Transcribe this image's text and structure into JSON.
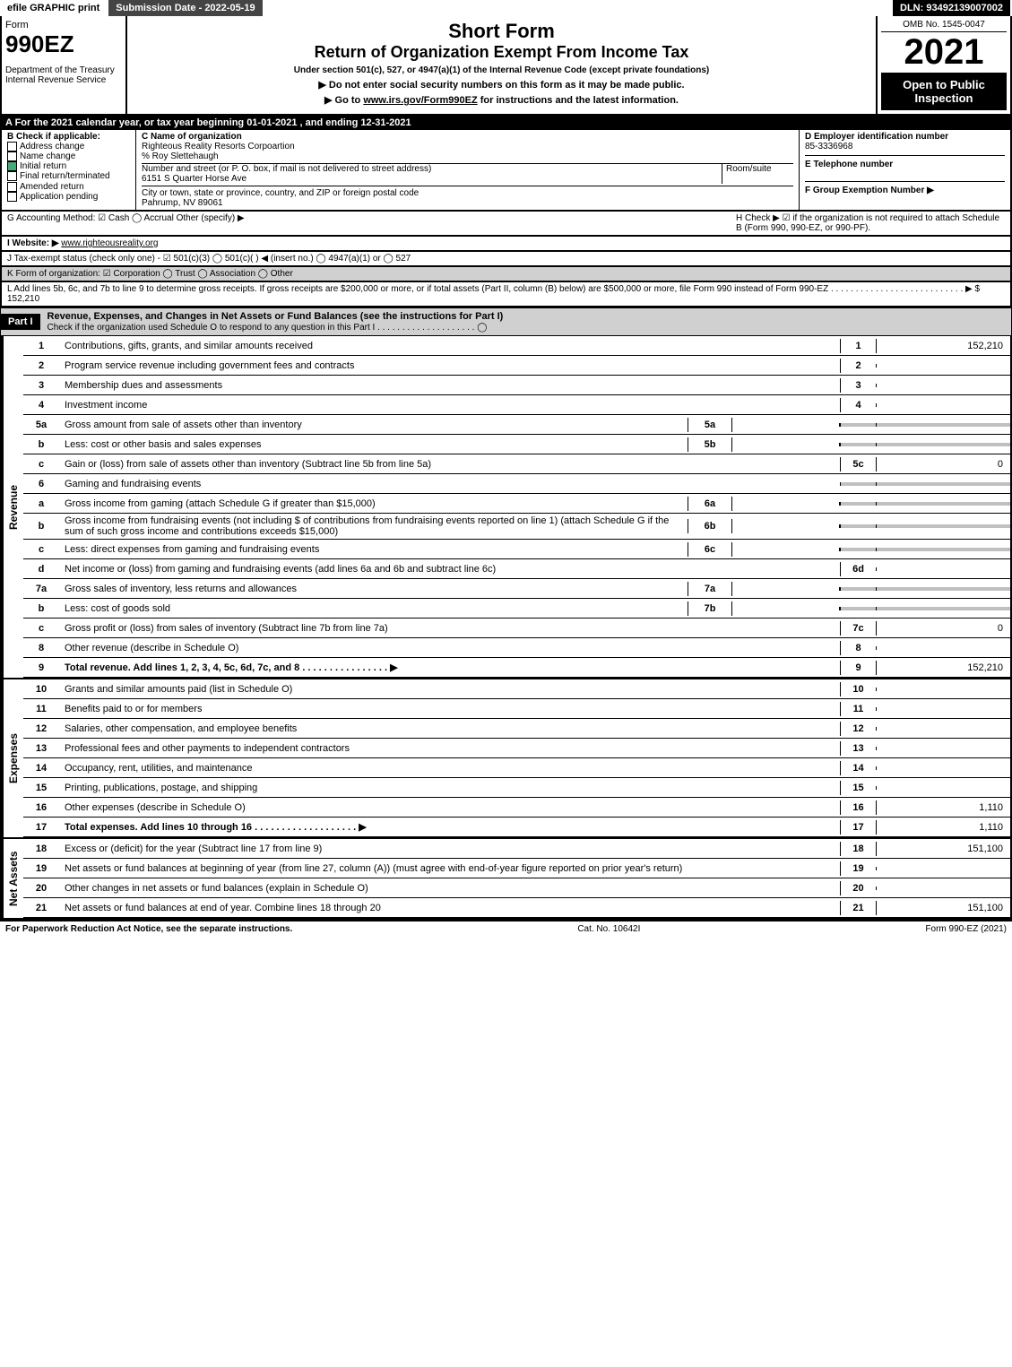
{
  "topbar": {
    "efile": "efile GRAPHIC print",
    "submission": "Submission Date - 2022-05-19",
    "dln": "DLN: 93492139007002"
  },
  "header": {
    "form_word": "Form",
    "form_num": "990EZ",
    "dept": "Department of the Treasury\nInternal Revenue Service",
    "short_form": "Short Form",
    "title": "Return of Organization Exempt From Income Tax",
    "subtitle": "Under section 501(c), 527, or 4947(a)(1) of the Internal Revenue Code (except private foundations)",
    "instr1": "▶ Do not enter social security numbers on this form as it may be made public.",
    "instr2_pre": "▶ Go to ",
    "instr2_link": "www.irs.gov/Form990EZ",
    "instr2_post": " for instructions and the latest information.",
    "omb": "OMB No. 1545-0047",
    "year": "2021",
    "open": "Open to Public Inspection"
  },
  "section_a": "A  For the 2021 calendar year, or tax year beginning 01-01-2021 , and ending 12-31-2021",
  "box_b": {
    "title": "B  Check if applicable:",
    "opts": [
      "Address change",
      "Name change",
      "Initial return",
      "Final return/terminated",
      "Amended return",
      "Application pending"
    ],
    "checked_idx": 2
  },
  "box_c": {
    "label_name": "C Name of organization",
    "org_name": "Righteous Reality Resorts Corpoartion",
    "care_of": "% Roy Slettehaugh",
    "label_addr": "Number and street (or P. O. box, if mail is not delivered to street address)",
    "room": "Room/suite",
    "addr": "6151 S Quarter Horse Ave",
    "label_city": "City or town, state or province, country, and ZIP or foreign postal code",
    "city": "Pahrump, NV  89061"
  },
  "box_d": {
    "label": "D Employer identification number",
    "val": "85-3336968"
  },
  "box_e": {
    "label": "E Telephone number",
    "val": ""
  },
  "box_f": {
    "label": "F Group Exemption Number  ▶",
    "val": ""
  },
  "line_g": "G Accounting Method:   ☑ Cash  ◯ Accrual   Other (specify) ▶",
  "line_h": "H  Check ▶ ☑ if the organization is not required to attach Schedule B (Form 990, 990-EZ, or 990-PF).",
  "line_i_label": "I Website: ▶",
  "line_i_val": "www.righteousreality.org",
  "line_j": "J Tax-exempt status (check only one) - ☑ 501(c)(3) ◯ 501(c)(  ) ◀ (insert no.) ◯ 4947(a)(1) or ◯ 527",
  "line_k": "K Form of organization:  ☑ Corporation  ◯ Trust  ◯ Association  ◯ Other",
  "line_l": "L Add lines 5b, 6c, and 7b to line 9 to determine gross receipts. If gross receipts are $200,000 or more, or if total assets (Part II, column (B) below) are $500,000 or more, file Form 990 instead of Form 990-EZ  .  .  .  .  .  .  .  .  .  .  .  .  .  .  .  .  .  .  .  .  .  .  .  .  .  .  .  ▶ $ 152,210",
  "part1": {
    "label": "Part I",
    "title": "Revenue, Expenses, and Changes in Net Assets or Fund Balances (see the instructions for Part I)",
    "check": "Check if the organization used Schedule O to respond to any question in this Part I  .  .  .  .  .  .  .  .  .  .  .  .  .  .  .  .  .  .  .  .  ◯"
  },
  "revenue_label": "Revenue",
  "expenses_label": "Expenses",
  "netassets_label": "Net Assets",
  "lines": {
    "l1": {
      "n": "1",
      "d": "Contributions, gifts, grants, and similar amounts received",
      "r": "1",
      "v": "152,210"
    },
    "l2": {
      "n": "2",
      "d": "Program service revenue including government fees and contracts",
      "r": "2",
      "v": ""
    },
    "l3": {
      "n": "3",
      "d": "Membership dues and assessments",
      "r": "3",
      "v": ""
    },
    "l4": {
      "n": "4",
      "d": "Investment income",
      "r": "4",
      "v": ""
    },
    "l5a": {
      "n": "5a",
      "d": "Gross amount from sale of assets other than inventory",
      "s": "5a",
      "sv": ""
    },
    "l5b": {
      "n": "b",
      "d": "Less: cost or other basis and sales expenses",
      "s": "5b",
      "sv": ""
    },
    "l5c": {
      "n": "c",
      "d": "Gain or (loss) from sale of assets other than inventory (Subtract line 5b from line 5a)",
      "r": "5c",
      "v": "0"
    },
    "l6": {
      "n": "6",
      "d": "Gaming and fundraising events"
    },
    "l6a": {
      "n": "a",
      "d": "Gross income from gaming (attach Schedule G if greater than $15,000)",
      "s": "6a",
      "sv": ""
    },
    "l6b": {
      "n": "b",
      "d": "Gross income from fundraising events (not including $                     of contributions from fundraising events reported on line 1) (attach Schedule G if the sum of such gross income and contributions exceeds $15,000)",
      "s": "6b",
      "sv": ""
    },
    "l6c": {
      "n": "c",
      "d": "Less: direct expenses from gaming and fundraising events",
      "s": "6c",
      "sv": ""
    },
    "l6d": {
      "n": "d",
      "d": "Net income or (loss) from gaming and fundraising events (add lines 6a and 6b and subtract line 6c)",
      "r": "6d",
      "v": ""
    },
    "l7a": {
      "n": "7a",
      "d": "Gross sales of inventory, less returns and allowances",
      "s": "7a",
      "sv": ""
    },
    "l7b": {
      "n": "b",
      "d": "Less: cost of goods sold",
      "s": "7b",
      "sv": ""
    },
    "l7c": {
      "n": "c",
      "d": "Gross profit or (loss) from sales of inventory (Subtract line 7b from line 7a)",
      "r": "7c",
      "v": "0"
    },
    "l8": {
      "n": "8",
      "d": "Other revenue (describe in Schedule O)",
      "r": "8",
      "v": ""
    },
    "l9": {
      "n": "9",
      "d": "Total revenue. Add lines 1, 2, 3, 4, 5c, 6d, 7c, and 8   .  .  .  .  .  .  .  .  .  .  .  .  .  .  .  .   ▶",
      "r": "9",
      "v": "152,210",
      "bold": true
    },
    "l10": {
      "n": "10",
      "d": "Grants and similar amounts paid (list in Schedule O)",
      "r": "10",
      "v": ""
    },
    "l11": {
      "n": "11",
      "d": "Benefits paid to or for members",
      "r": "11",
      "v": ""
    },
    "l12": {
      "n": "12",
      "d": "Salaries, other compensation, and employee benefits",
      "r": "12",
      "v": ""
    },
    "l13": {
      "n": "13",
      "d": "Professional fees and other payments to independent contractors",
      "r": "13",
      "v": ""
    },
    "l14": {
      "n": "14",
      "d": "Occupancy, rent, utilities, and maintenance",
      "r": "14",
      "v": ""
    },
    "l15": {
      "n": "15",
      "d": "Printing, publications, postage, and shipping",
      "r": "15",
      "v": ""
    },
    "l16": {
      "n": "16",
      "d": "Other expenses (describe in Schedule O)",
      "r": "16",
      "v": "1,110"
    },
    "l17": {
      "n": "17",
      "d": "Total expenses. Add lines 10 through 16   .  .  .  .  .  .  .  .  .  .  .  .  .  .  .  .  .  .  .   ▶",
      "r": "17",
      "v": "1,110",
      "bold": true
    },
    "l18": {
      "n": "18",
      "d": "Excess or (deficit) for the year (Subtract line 17 from line 9)",
      "r": "18",
      "v": "151,100"
    },
    "l19": {
      "n": "19",
      "d": "Net assets or fund balances at beginning of year (from line 27, column (A)) (must agree with end-of-year figure reported on prior year's return)",
      "r": "19",
      "v": ""
    },
    "l20": {
      "n": "20",
      "d": "Other changes in net assets or fund balances (explain in Schedule O)",
      "r": "20",
      "v": ""
    },
    "l21": {
      "n": "21",
      "d": "Net assets or fund balances at end of year. Combine lines 18 through 20",
      "r": "21",
      "v": "151,100"
    }
  },
  "footer": {
    "left": "For Paperwork Reduction Act Notice, see the separate instructions.",
    "mid": "Cat. No. 10642I",
    "right": "Form 990-EZ (2021)"
  }
}
